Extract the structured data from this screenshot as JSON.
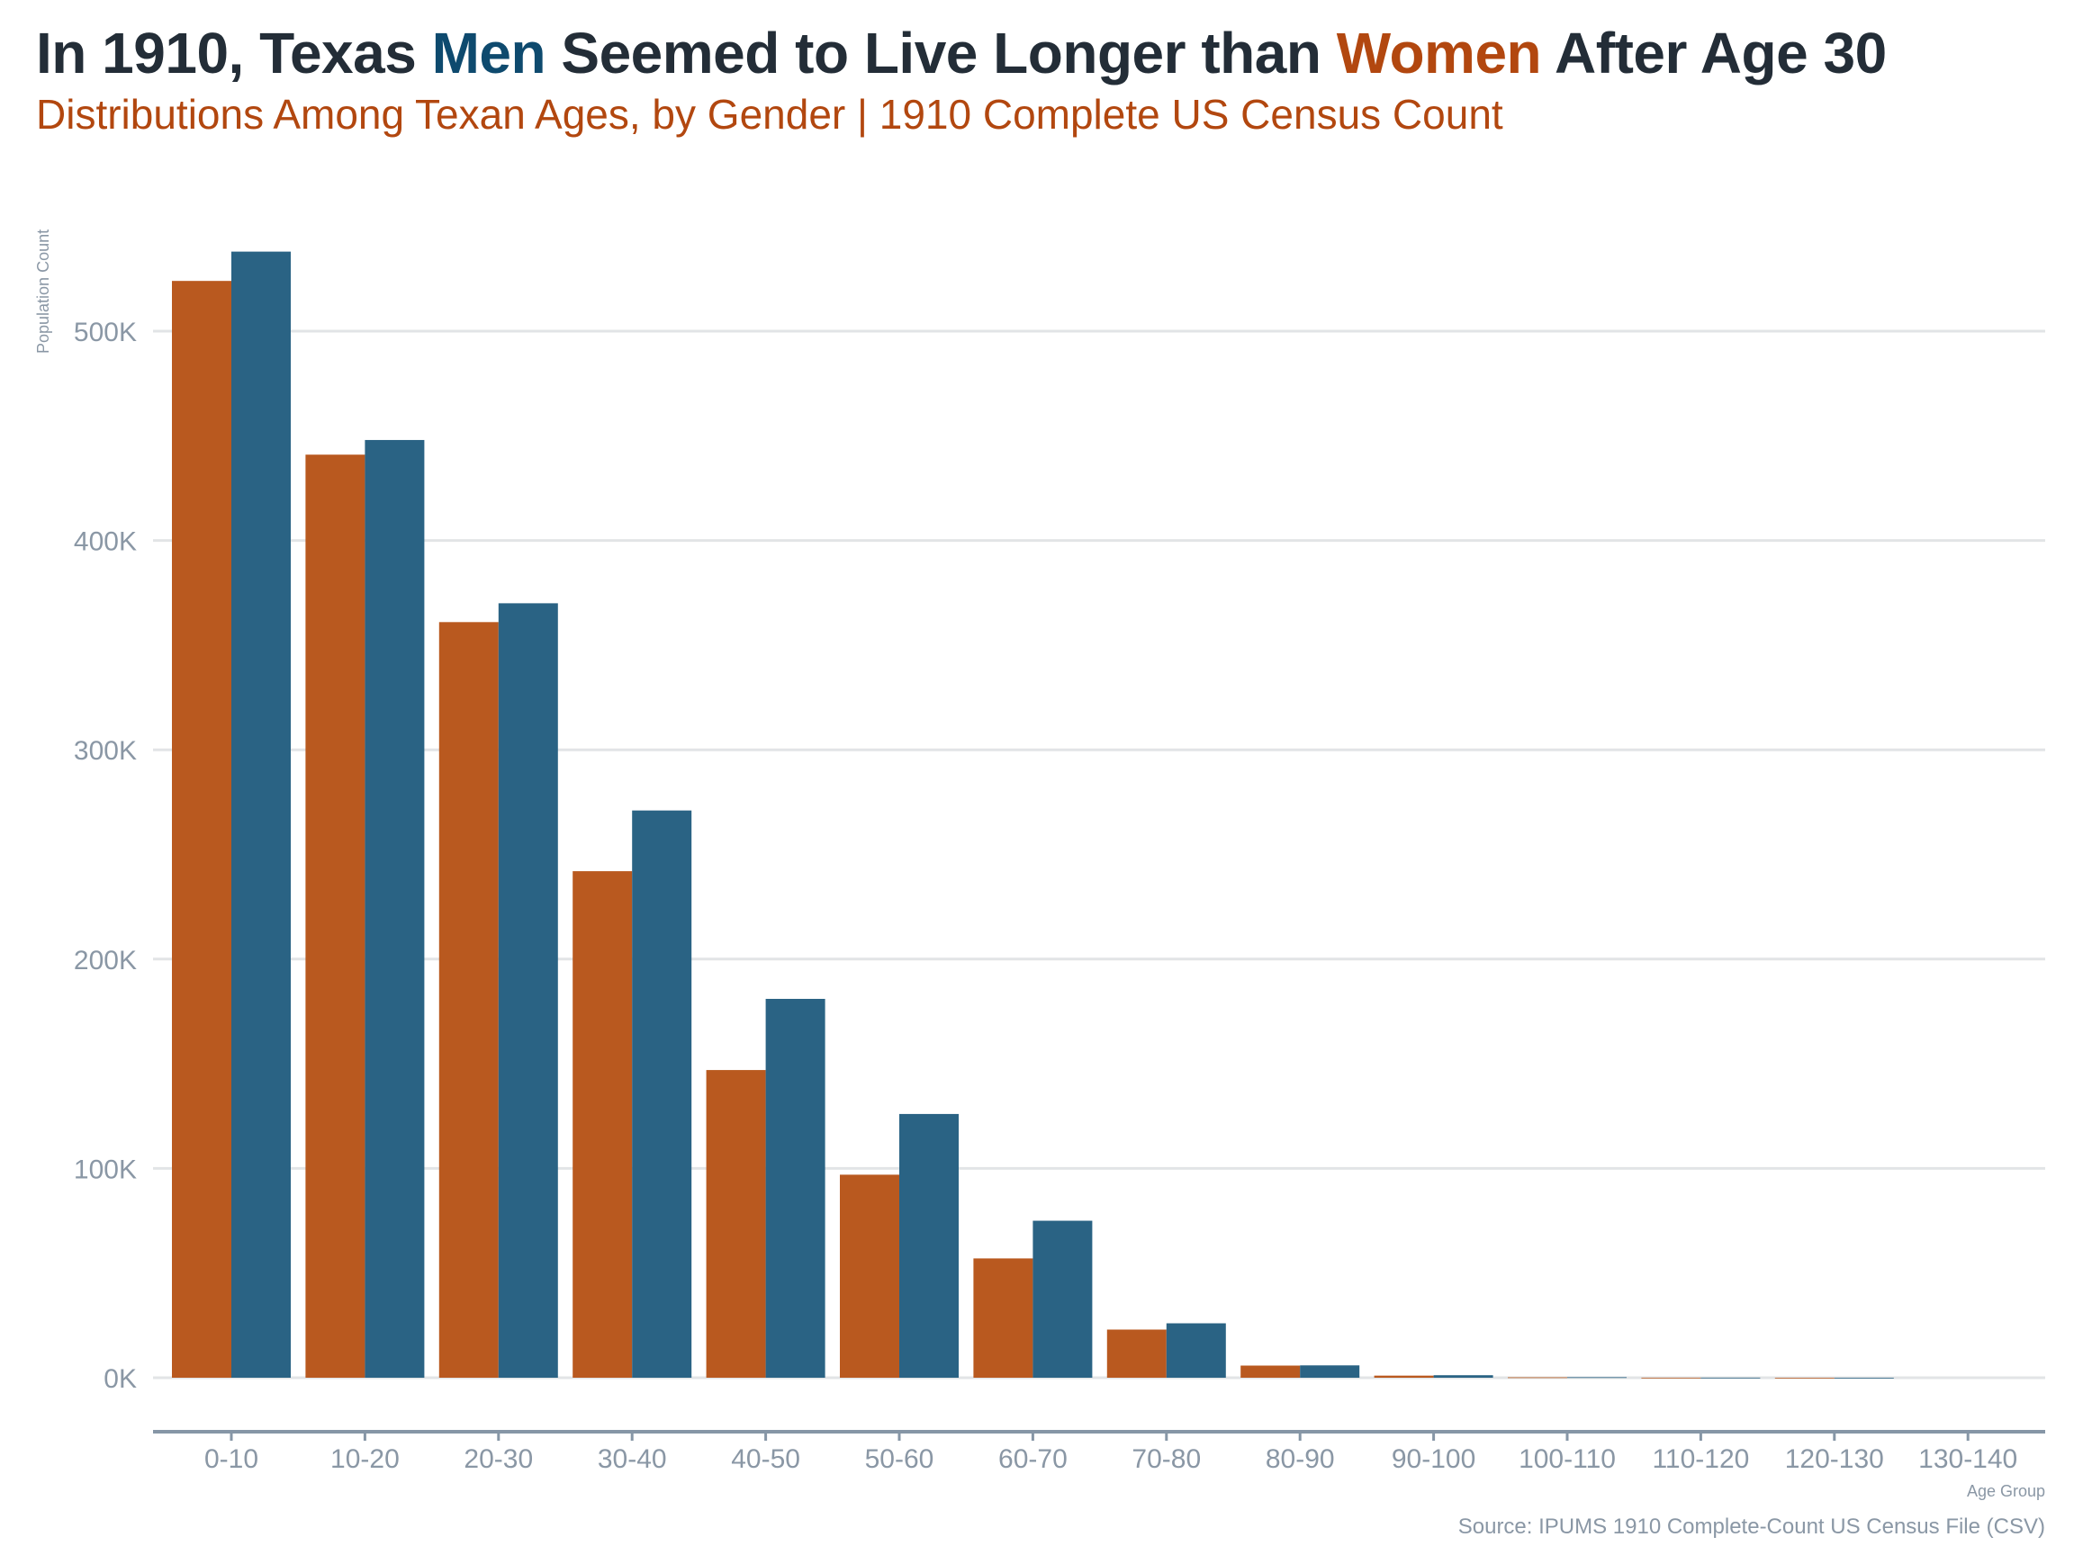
{
  "header": {
    "title_prefix": "In 1910, Texas ",
    "title_men": "Men",
    "title_middle": " Seemed to Live Longer than ",
    "title_women": "Women",
    "title_suffix": " After Age 30",
    "subtitle": "Distributions Among Texan Ages, by Gender | 1910 Complete US Census Count"
  },
  "footer": {
    "source": "Source: IPUMS 1910 Complete-Count US Census File (CSV)"
  },
  "colors": {
    "women": "#b9591f",
    "men": "#2a6384",
    "title_text": "#232d37",
    "subtitle_text": "#b2470f",
    "axis_text": "#8a97a5",
    "gridline": "#e2e4e6",
    "axis_line": "#8696a6"
  },
  "chart_data": {
    "type": "bar",
    "ylabel": "Population Count",
    "xlabel": "Age Group",
    "ylim": [
      0,
      560000
    ],
    "yticks": [
      0,
      100000,
      200000,
      300000,
      400000,
      500000
    ],
    "ytick_labels": [
      "0K",
      "100K",
      "200K",
      "300K",
      "400K",
      "500K"
    ],
    "grid": true,
    "legend": "none",
    "categories": [
      "0-10",
      "10-20",
      "20-30",
      "30-40",
      "40-50",
      "50-60",
      "60-70",
      "70-80",
      "80-90",
      "90-100",
      "100-110",
      "110-120",
      "120-130",
      "130-140"
    ],
    "series": [
      {
        "name": "Women",
        "color": "#b9591f",
        "values": [
          524000,
          441000,
          361000,
          242000,
          147000,
          97000,
          57000,
          23000,
          5800,
          1000,
          200,
          30,
          5,
          0
        ]
      },
      {
        "name": "Men",
        "color": "#2a6384",
        "values": [
          538000,
          448000,
          370000,
          271000,
          181000,
          126000,
          75000,
          26000,
          5900,
          1200,
          250,
          40,
          5,
          0
        ]
      }
    ]
  }
}
